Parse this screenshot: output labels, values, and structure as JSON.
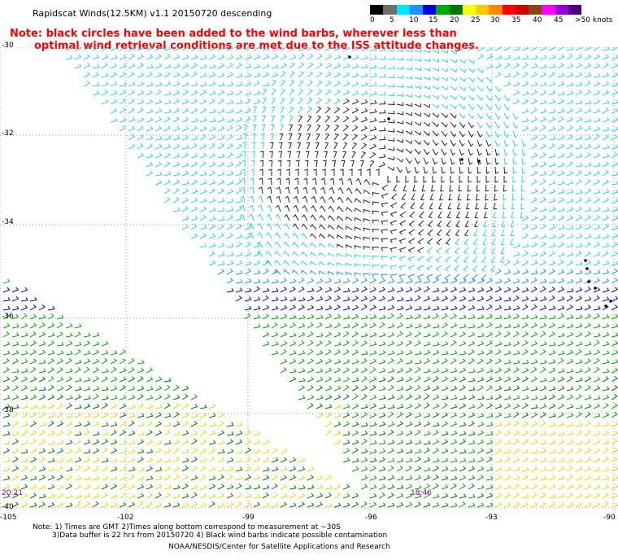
{
  "header": {
    "title": "Rapidscat Winds(12.5KM) v1.1 20150720 descending",
    "note_line1": "Note: black circles have been added to the wind barbs, wherever less than",
    "note_line2": "optimal wind retrieval conditions are met due to the ISS attitude changes."
  },
  "legend": {
    "labels": [
      "0",
      "5",
      "10",
      "15",
      "20",
      "25",
      "30",
      "35",
      "40",
      "45",
      ">50 knots"
    ],
    "colors": [
      "#000000",
      "#6e6e6e",
      "#00e5ff",
      "#1e90ff",
      "#0000dd",
      "#00aa00",
      "#007700",
      "#ffff00",
      "#ffcc00",
      "#ff8800",
      "#ff0000",
      "#cc0000",
      "#8b4513",
      "#ff00ff",
      "#9400d3",
      "#4b0082"
    ]
  },
  "axes": {
    "y_ticks": [
      "-30",
      "-32",
      "-34",
      "-36",
      "-38",
      "-40"
    ],
    "x_ticks": [
      "-105",
      "-102",
      "-99",
      "-96",
      "-93",
      "-90"
    ]
  },
  "times": {
    "left": "20:21",
    "middle": "18:46"
  },
  "footer": {
    "note1": "Note: 1) Times are GMT 2)Times along bottom correspond to measurement at ~30S",
    "note2": "3)Data buffer is 22 hrs from 20150720 4) Black wind barbs indicate possible contamination",
    "credit": "NOAA/NESDIS/Center for Satellite Applications and Research"
  }
}
